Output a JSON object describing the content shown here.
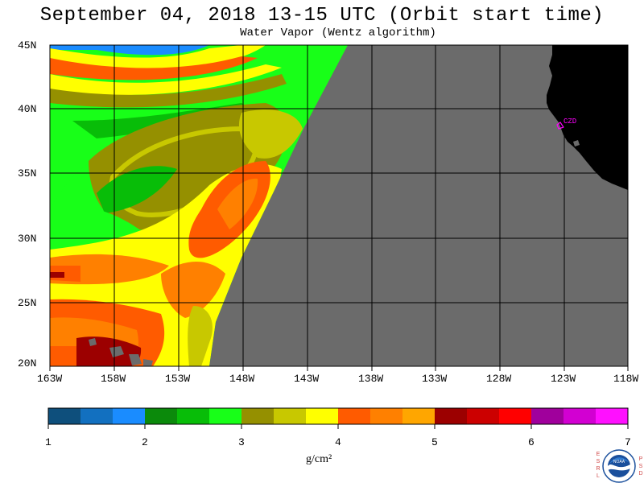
{
  "title": "September 04, 2018  13-15 UTC  (Orbit start time)",
  "subtitle": "Water Vapor (Wentz algorithm)",
  "map": {
    "lat_labels": [
      "45N",
      "40N",
      "35N",
      "30N",
      "25N",
      "20N"
    ],
    "lon_labels": [
      "163W",
      "158W",
      "153W",
      "148W",
      "143W",
      "138W",
      "133W",
      "128W",
      "123W",
      "118W"
    ],
    "station_label": "CZD",
    "no_data_color": "#6b6b6b",
    "land_color": "#000000",
    "grid_color": "#000000"
  },
  "colorbar": {
    "colors": [
      "#0e4f7c",
      "#1270c0",
      "#1a8cff",
      "#0b8a0b",
      "#08bd08",
      "#18ff18",
      "#959000",
      "#c8c800",
      "#ffff00",
      "#ff5b00",
      "#ff8000",
      "#ffa600",
      "#9c0000",
      "#cc0000",
      "#ff0000",
      "#a0009c",
      "#d200d2",
      "#ff10ff"
    ],
    "tick_labels": [
      "1",
      "2",
      "3",
      "4",
      "5",
      "6",
      "7"
    ],
    "units": "g/cm²"
  },
  "logo": {
    "left_text": "ESRL",
    "right_text": "PSD",
    "name": "NOAA"
  }
}
